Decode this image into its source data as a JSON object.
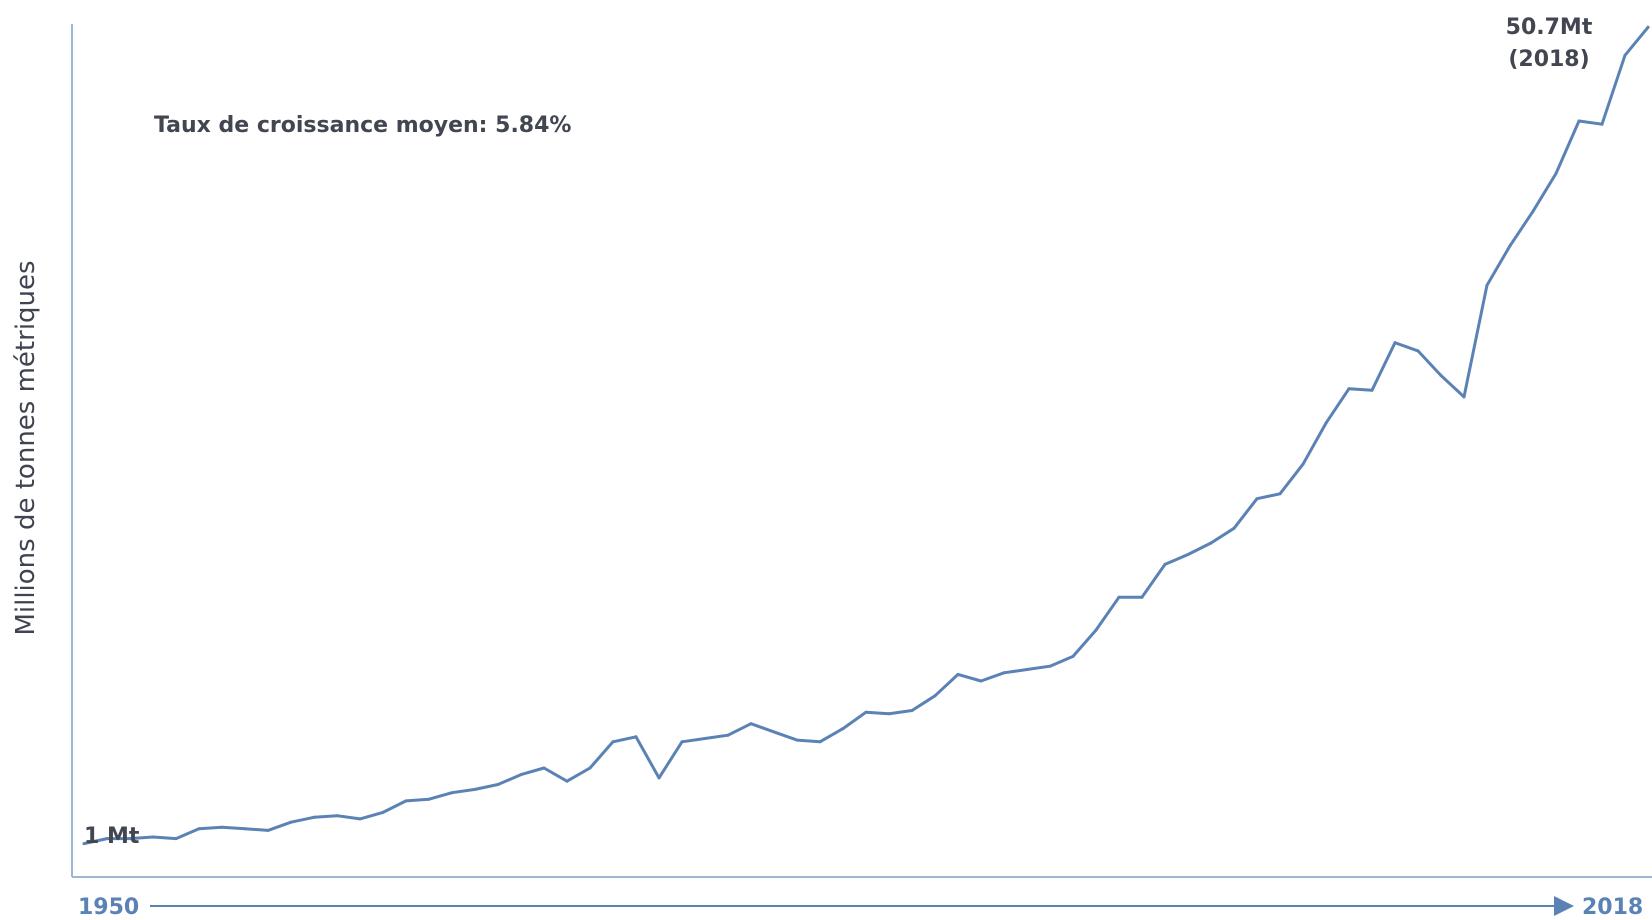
{
  "chart_data": {
    "type": "line",
    "ylabel": "Millions de tonnes métriques",
    "annotation": "Taux de croissance moyen: 5.84%",
    "start_label": "1 Mt",
    "end_label_line1": "50.7Mt",
    "end_label_line2": "(2018)",
    "x_start_label": "1950",
    "x_end_label": "2018",
    "x": [
      1950,
      1951,
      1952,
      1953,
      1954,
      1955,
      1956,
      1957,
      1958,
      1959,
      1960,
      1961,
      1962,
      1963,
      1964,
      1965,
      1966,
      1967,
      1968,
      1969,
      1970,
      1971,
      1972,
      1973,
      1974,
      1975,
      1976,
      1977,
      1978,
      1979,
      1980,
      1981,
      1982,
      1983,
      1984,
      1985,
      1986,
      1987,
      1988,
      1989,
      1990,
      1991,
      1992,
      1993,
      1994,
      1995,
      1996,
      1997,
      1998,
      1999,
      2000,
      2001,
      2002,
      2003,
      2004,
      2005,
      2006,
      2007,
      2008,
      2009,
      2010,
      2011,
      2012,
      2013,
      2014,
      2015,
      2016,
      2017,
      2018
    ],
    "values": [
      1.0,
      1.3,
      1.3,
      1.4,
      1.3,
      1.9,
      2.0,
      1.9,
      1.8,
      2.3,
      2.6,
      2.7,
      2.5,
      2.9,
      3.6,
      3.7,
      4.1,
      4.3,
      4.6,
      5.2,
      5.6,
      4.8,
      5.6,
      7.2,
      7.5,
      5.0,
      7.2,
      7.4,
      7.6,
      8.3,
      7.8,
      7.3,
      7.2,
      8.0,
      9.0,
      8.9,
      9.1,
      10.0,
      11.3,
      10.9,
      11.4,
      11.6,
      11.8,
      12.4,
      14.0,
      16.0,
      16.0,
      18.0,
      18.6,
      19.3,
      20.2,
      22.0,
      22.3,
      24.1,
      26.6,
      28.7,
      28.6,
      31.5,
      31.0,
      29.5,
      28.2,
      35.0,
      37.4,
      39.5,
      41.8,
      45.0,
      44.8,
      49.0,
      50.7
    ],
    "color": "#5b82b5",
    "ylim": [
      0,
      52
    ],
    "grid": false,
    "legend": false
  }
}
